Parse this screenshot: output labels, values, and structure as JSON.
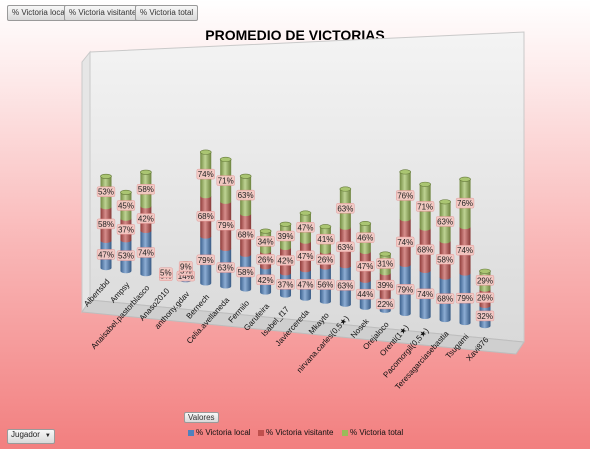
{
  "field_buttons": [
    "% Victoria local",
    "% Victoria visitante",
    "% Victoria total"
  ],
  "row_field": {
    "label": "Jugador",
    "dropdown_icon": "triangle-down-icon"
  },
  "legend": {
    "caption": "Valores",
    "items": [
      {
        "label": "% Victoria local",
        "color": "#4f81bd"
      },
      {
        "label": "% Victoria visitante",
        "color": "#c0504d"
      },
      {
        "label": "% Victoria total",
        "color": "#9bbb59"
      }
    ]
  },
  "chart_data": {
    "type": "bar",
    "stacked": true,
    "title": "PROMEDIO DE VICTORIAS",
    "categories": [
      "Albertsbd",
      "Ampsy",
      "Anaisabel.pastorblasco",
      "Anaso2010",
      "anthony.gdav",
      "Bernech",
      "Celia.avellaneda",
      "Fermilo",
      "Garufeira",
      "Isabel_f17",
      "Javiercereda",
      "Mkayto",
      "nirvana.carles(0,5★)",
      "Nosek",
      "Orejaloco",
      "Orenti(1★)",
      "Pacomorgil(0,5★)",
      "Teresagarciasebastia",
      "Tsugami",
      "Xavi876"
    ],
    "series": [
      {
        "name": "% Victoria local",
        "color": "#4f81bd",
        "values": [
          47,
          53,
          74,
          5,
          14,
          79,
          63,
          58,
          42,
          37,
          47,
          56,
          63,
          44,
          22,
          79,
          74,
          68,
          79,
          32
        ]
      },
      {
        "name": "% Victoria visitante",
        "color": "#c0504d",
        "values": [
          58,
          37,
          42,
          0,
          5,
          68,
          79,
          68,
          26,
          42,
          47,
          26,
          63,
          47,
          39,
          74,
          68,
          58,
          74,
          26
        ]
      },
      {
        "name": "% Victoria total",
        "color": "#9bbb59",
        "values": [
          53,
          45,
          58,
          5,
          9,
          74,
          71,
          63,
          34,
          39,
          47,
          41,
          63,
          46,
          31,
          76,
          71,
          63,
          76,
          29
        ]
      }
    ],
    "data_labels": {
      "% Victoria local": [
        "47%",
        "53%",
        "74%",
        "5%",
        "14%",
        "79%",
        "63%",
        "58%",
        "42%",
        "37%",
        "47%",
        "56%",
        "63%",
        "44%",
        "22%",
        "79%",
        "74%",
        "68%",
        "79%",
        "32%"
      ],
      "% Victoria visitante": [
        "58%",
        "37%",
        "42%",
        "",
        "5%",
        "68%",
        "79%",
        "68%",
        "26%",
        "42%",
        "47%",
        "26%",
        "63%",
        "47%",
        "39%",
        "74%",
        "68%",
        "58%",
        "74%",
        "26%"
      ],
      "% Victoria total": [
        "53%",
        "45%",
        "58%",
        "5%",
        "9%",
        "74%",
        "71%",
        "63%",
        "34%",
        "39%",
        "47%",
        "41%",
        "63%",
        "46%",
        "31%",
        "76%",
        "71%",
        "63%",
        "76%",
        "29%"
      ]
    },
    "legend_position": "bottom",
    "grid": false,
    "perspective": "3d"
  }
}
